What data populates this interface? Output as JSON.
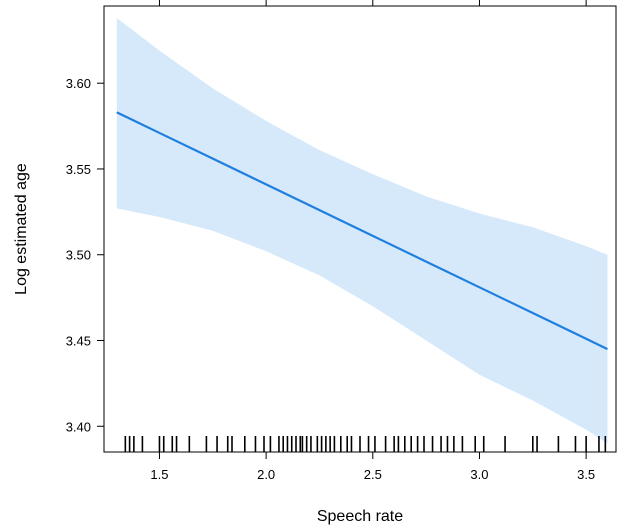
{
  "chart_data": {
    "type": "line",
    "title": "",
    "xlabel": "Speech rate",
    "ylabel": "Log estimated age",
    "xlim": [
      1.24,
      3.64
    ],
    "ylim": [
      3.385,
      3.645
    ],
    "x_ticks": [
      1.5,
      2.0,
      2.5,
      3.0,
      3.5
    ],
    "x_tick_labels": [
      "1.5",
      "2.0",
      "2.5",
      "3.0",
      "3.5"
    ],
    "y_ticks": [
      3.4,
      3.45,
      3.5,
      3.55,
      3.6
    ],
    "y_tick_labels": [
      "3.40",
      "3.45",
      "3.50",
      "3.55",
      "3.60"
    ],
    "grid": false,
    "series": [
      {
        "x": [
          1.3,
          1.5,
          1.75,
          2.0,
          2.25,
          2.5,
          2.75,
          3.0,
          3.25,
          3.5,
          3.6
        ],
        "y": [
          3.583,
          3.571,
          3.556,
          3.541,
          3.526,
          3.511,
          3.496,
          3.481,
          3.466,
          3.451,
          3.445
        ]
      }
    ],
    "confidence_band": {
      "x": [
        1.3,
        1.5,
        1.75,
        2.0,
        2.25,
        2.5,
        2.75,
        3.0,
        3.25,
        3.5,
        3.6
      ],
      "lower": [
        3.527,
        3.522,
        3.514,
        3.502,
        3.488,
        3.47,
        3.45,
        3.43,
        3.415,
        3.398,
        3.39
      ],
      "upper": [
        3.638,
        3.619,
        3.597,
        3.578,
        3.561,
        3.547,
        3.534,
        3.524,
        3.516,
        3.505,
        3.5
      ]
    },
    "rug": [
      1.34,
      1.36,
      1.38,
      1.42,
      1.5,
      1.52,
      1.56,
      1.58,
      1.64,
      1.72,
      1.77,
      1.82,
      1.84,
      1.9,
      1.95,
      1.99,
      2.02,
      2.06,
      2.08,
      2.1,
      2.12,
      2.14,
      2.16,
      2.17,
      2.19,
      2.21,
      2.24,
      2.26,
      2.28,
      2.3,
      2.32,
      2.35,
      2.38,
      2.4,
      2.44,
      2.48,
      2.51,
      2.56,
      2.6,
      2.62,
      2.65,
      2.68,
      2.71,
      2.74,
      2.78,
      2.82,
      2.85,
      2.88,
      2.92,
      2.98,
      3.02,
      3.12,
      3.25,
      3.27,
      3.37,
      3.45,
      3.5,
      3.56,
      3.59
    ],
    "colors": {
      "line": "#1f7fdf",
      "band": "#d6e9fb",
      "rug": "#000000",
      "axis": "#000000"
    }
  }
}
